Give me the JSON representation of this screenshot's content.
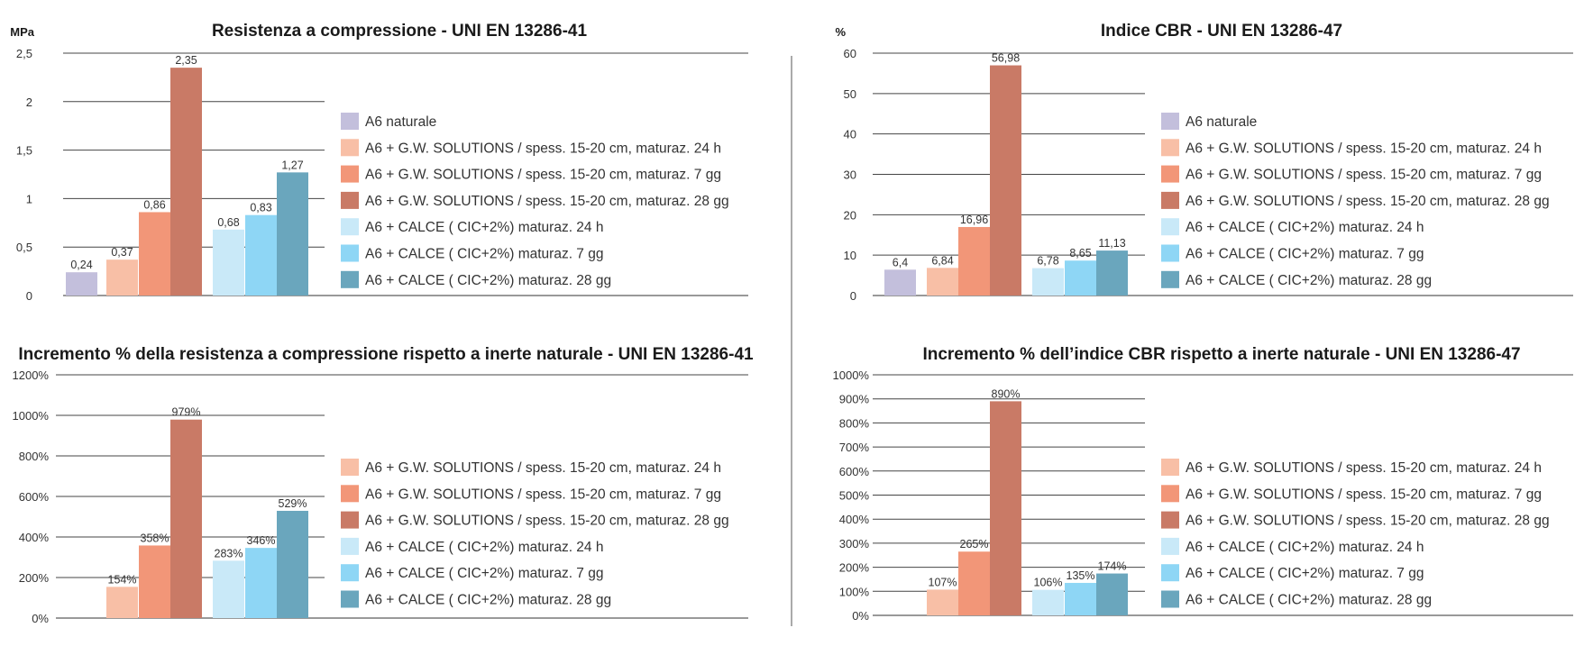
{
  "colors": {
    "A6_naturale": "#c3bfdc",
    "gw_24h": "#f8bfa6",
    "gw_7gg": "#f29678",
    "gw_28gg": "#c97a66",
    "calce_24h": "#c9e9f8",
    "calce_7gg": "#8ed6f5",
    "calce_28gg": "#6aa6bd"
  },
  "chart_data": [
    {
      "type": "bar",
      "title": "Resistenza a compressione - UNI EN 13286-41",
      "ylabel": "MPa",
      "ylim": [
        0,
        2.5
      ],
      "yticks": [
        "0",
        "0,5",
        "1",
        "1,5",
        "2",
        "2,5"
      ],
      "grid": true,
      "legend_position": "right",
      "series": [
        {
          "name": "A6    naturale",
          "color_key": "A6_naturale",
          "value": 0.24,
          "label": "0,24"
        },
        {
          "name": "A6 + G.W. SOLUTIONS / spess. 15-20 cm, maturaz. 24 h",
          "color_key": "gw_24h",
          "value": 0.37,
          "label": "0,37"
        },
        {
          "name": "A6 + G.W. SOLUTIONS /  spess. 15-20 cm, maturaz. 7 gg",
          "color_key": "gw_7gg",
          "value": 0.86,
          "label": "0,86"
        },
        {
          "name": "A6 + G.W. SOLUTIONS / spess. 15-20 cm, maturaz. 28 gg",
          "color_key": "gw_28gg",
          "value": 2.35,
          "label": "2,35"
        },
        {
          "name": "A6 + CALCE ( CIC+2%) maturaz. 24 h",
          "color_key": "calce_24h",
          "value": 0.68,
          "label": "0,68"
        },
        {
          "name": "A6 + CALCE ( CIC+2%) maturaz. 7 gg",
          "color_key": "calce_7gg",
          "value": 0.83,
          "label": "0,83"
        },
        {
          "name": "A6 + CALCE ( CIC+2%) maturaz. 28 gg",
          "color_key": "calce_28gg",
          "value": 1.27,
          "label": "1,27"
        }
      ]
    },
    {
      "type": "bar",
      "title": "Indice CBR - UNI EN 13286-47",
      "ylabel": "%",
      "ylim": [
        0,
        60
      ],
      "yticks": [
        "0",
        "10",
        "20",
        "30",
        "40",
        "50",
        "60"
      ],
      "grid": true,
      "legend_position": "right",
      "series": [
        {
          "name": "A6    naturale",
          "color_key": "A6_naturale",
          "value": 6.4,
          "label": "6,4"
        },
        {
          "name": "A6 + G.W. SOLUTIONS / spess. 15-20 cm, maturaz. 24 h",
          "color_key": "gw_24h",
          "value": 6.84,
          "label": "6,84"
        },
        {
          "name": "A6 + G.W. SOLUTIONS / spess. 15-20 cm, maturaz. 7 gg",
          "color_key": "gw_7gg",
          "value": 16.96,
          "label": "16,96"
        },
        {
          "name": "A6 + G.W. SOLUTIONS / spess. 15-20 cm, maturaz. 28 gg",
          "color_key": "gw_28gg",
          "value": 56.98,
          "label": "56,98"
        },
        {
          "name": "A6 + CALCE ( CIC+2%) maturaz. 24 h",
          "color_key": "calce_24h",
          "value": 6.78,
          "label": "6,78"
        },
        {
          "name": "A6 + CALCE ( CIC+2%) maturaz. 7 gg",
          "color_key": "calce_7gg",
          "value": 8.65,
          "label": "8,65"
        },
        {
          "name": "A6 + CALCE ( CIC+2%) maturaz. 28 gg",
          "color_key": "calce_28gg",
          "value": 11.13,
          "label": "11,13"
        }
      ]
    },
    {
      "type": "bar",
      "title": "Incremento % della resistenza a compressione rispetto a inerte naturale - UNI EN 13286-41",
      "ylabel": "",
      "ylim": [
        0,
        1200
      ],
      "yticks": [
        "0%",
        "200%",
        "400%",
        "600%",
        "800%",
        "1000%",
        "1200%"
      ],
      "grid": true,
      "legend_position": "right",
      "series": [
        {
          "name": "A6 + G.W. SOLUTIONS / spess. 15-20 cm, maturaz. 24 h",
          "color_key": "gw_24h",
          "value": 154,
          "label": "154%"
        },
        {
          "name": "A6 + G.W. SOLUTIONS / spess. 15-20 cm, maturaz. 7 gg",
          "color_key": "gw_7gg",
          "value": 358,
          "label": "358%"
        },
        {
          "name": "A6 + G.W. SOLUTIONS / spess. 15-20 cm, maturaz. 28 gg",
          "color_key": "gw_28gg",
          "value": 979,
          "label": "979%"
        },
        {
          "name": "A6 + CALCE ( CIC+2%) maturaz. 24 h",
          "color_key": "calce_24h",
          "value": 283,
          "label": "283%"
        },
        {
          "name": "A6 + CALCE ( CIC+2%) maturaz. 7 gg",
          "color_key": "calce_7gg",
          "value": 346,
          "label": "346%"
        },
        {
          "name": "A6 + CALCE ( CIC+2%) maturaz. 28 gg",
          "color_key": "calce_28gg",
          "value": 529,
          "label": "529%"
        }
      ]
    },
    {
      "type": "bar",
      "title": "Incremento % dell’indice CBR rispetto a inerte naturale - UNI EN 13286-47",
      "ylabel": "",
      "ylim": [
        0,
        1000
      ],
      "yticks": [
        "0%",
        "100%",
        "200%",
        "300%",
        "400%",
        "500%",
        "600%",
        "700%",
        "800%",
        "900%",
        "1000%"
      ],
      "grid": true,
      "legend_position": "right",
      "series": [
        {
          "name": "A6 + G.W. SOLUTIONS / spess. 15-20 cm, maturaz. 24 h",
          "color_key": "gw_24h",
          "value": 107,
          "label": "107%"
        },
        {
          "name": "A6 + G.W. SOLUTIONS / spess. 15-20 cm, maturaz. 7 gg",
          "color_key": "gw_7gg",
          "value": 265,
          "label": "265%"
        },
        {
          "name": "A6 + G.W. SOLUTIONS / spess. 15-20 cm, maturaz. 28 gg",
          "color_key": "gw_28gg",
          "value": 890,
          "label": "890%"
        },
        {
          "name": "A6 + CALCE ( CIC+2%) maturaz. 24 h",
          "color_key": "calce_24h",
          "value": 106,
          "label": "106%"
        },
        {
          "name": "A6 + CALCE ( CIC+2%) maturaz. 7 gg",
          "color_key": "calce_7gg",
          "value": 135,
          "label": "135%"
        },
        {
          "name": "A6 + CALCE ( CIC+2%) maturaz. 28 gg",
          "color_key": "calce_28gg",
          "value": 174,
          "label": "174%"
        }
      ]
    }
  ]
}
